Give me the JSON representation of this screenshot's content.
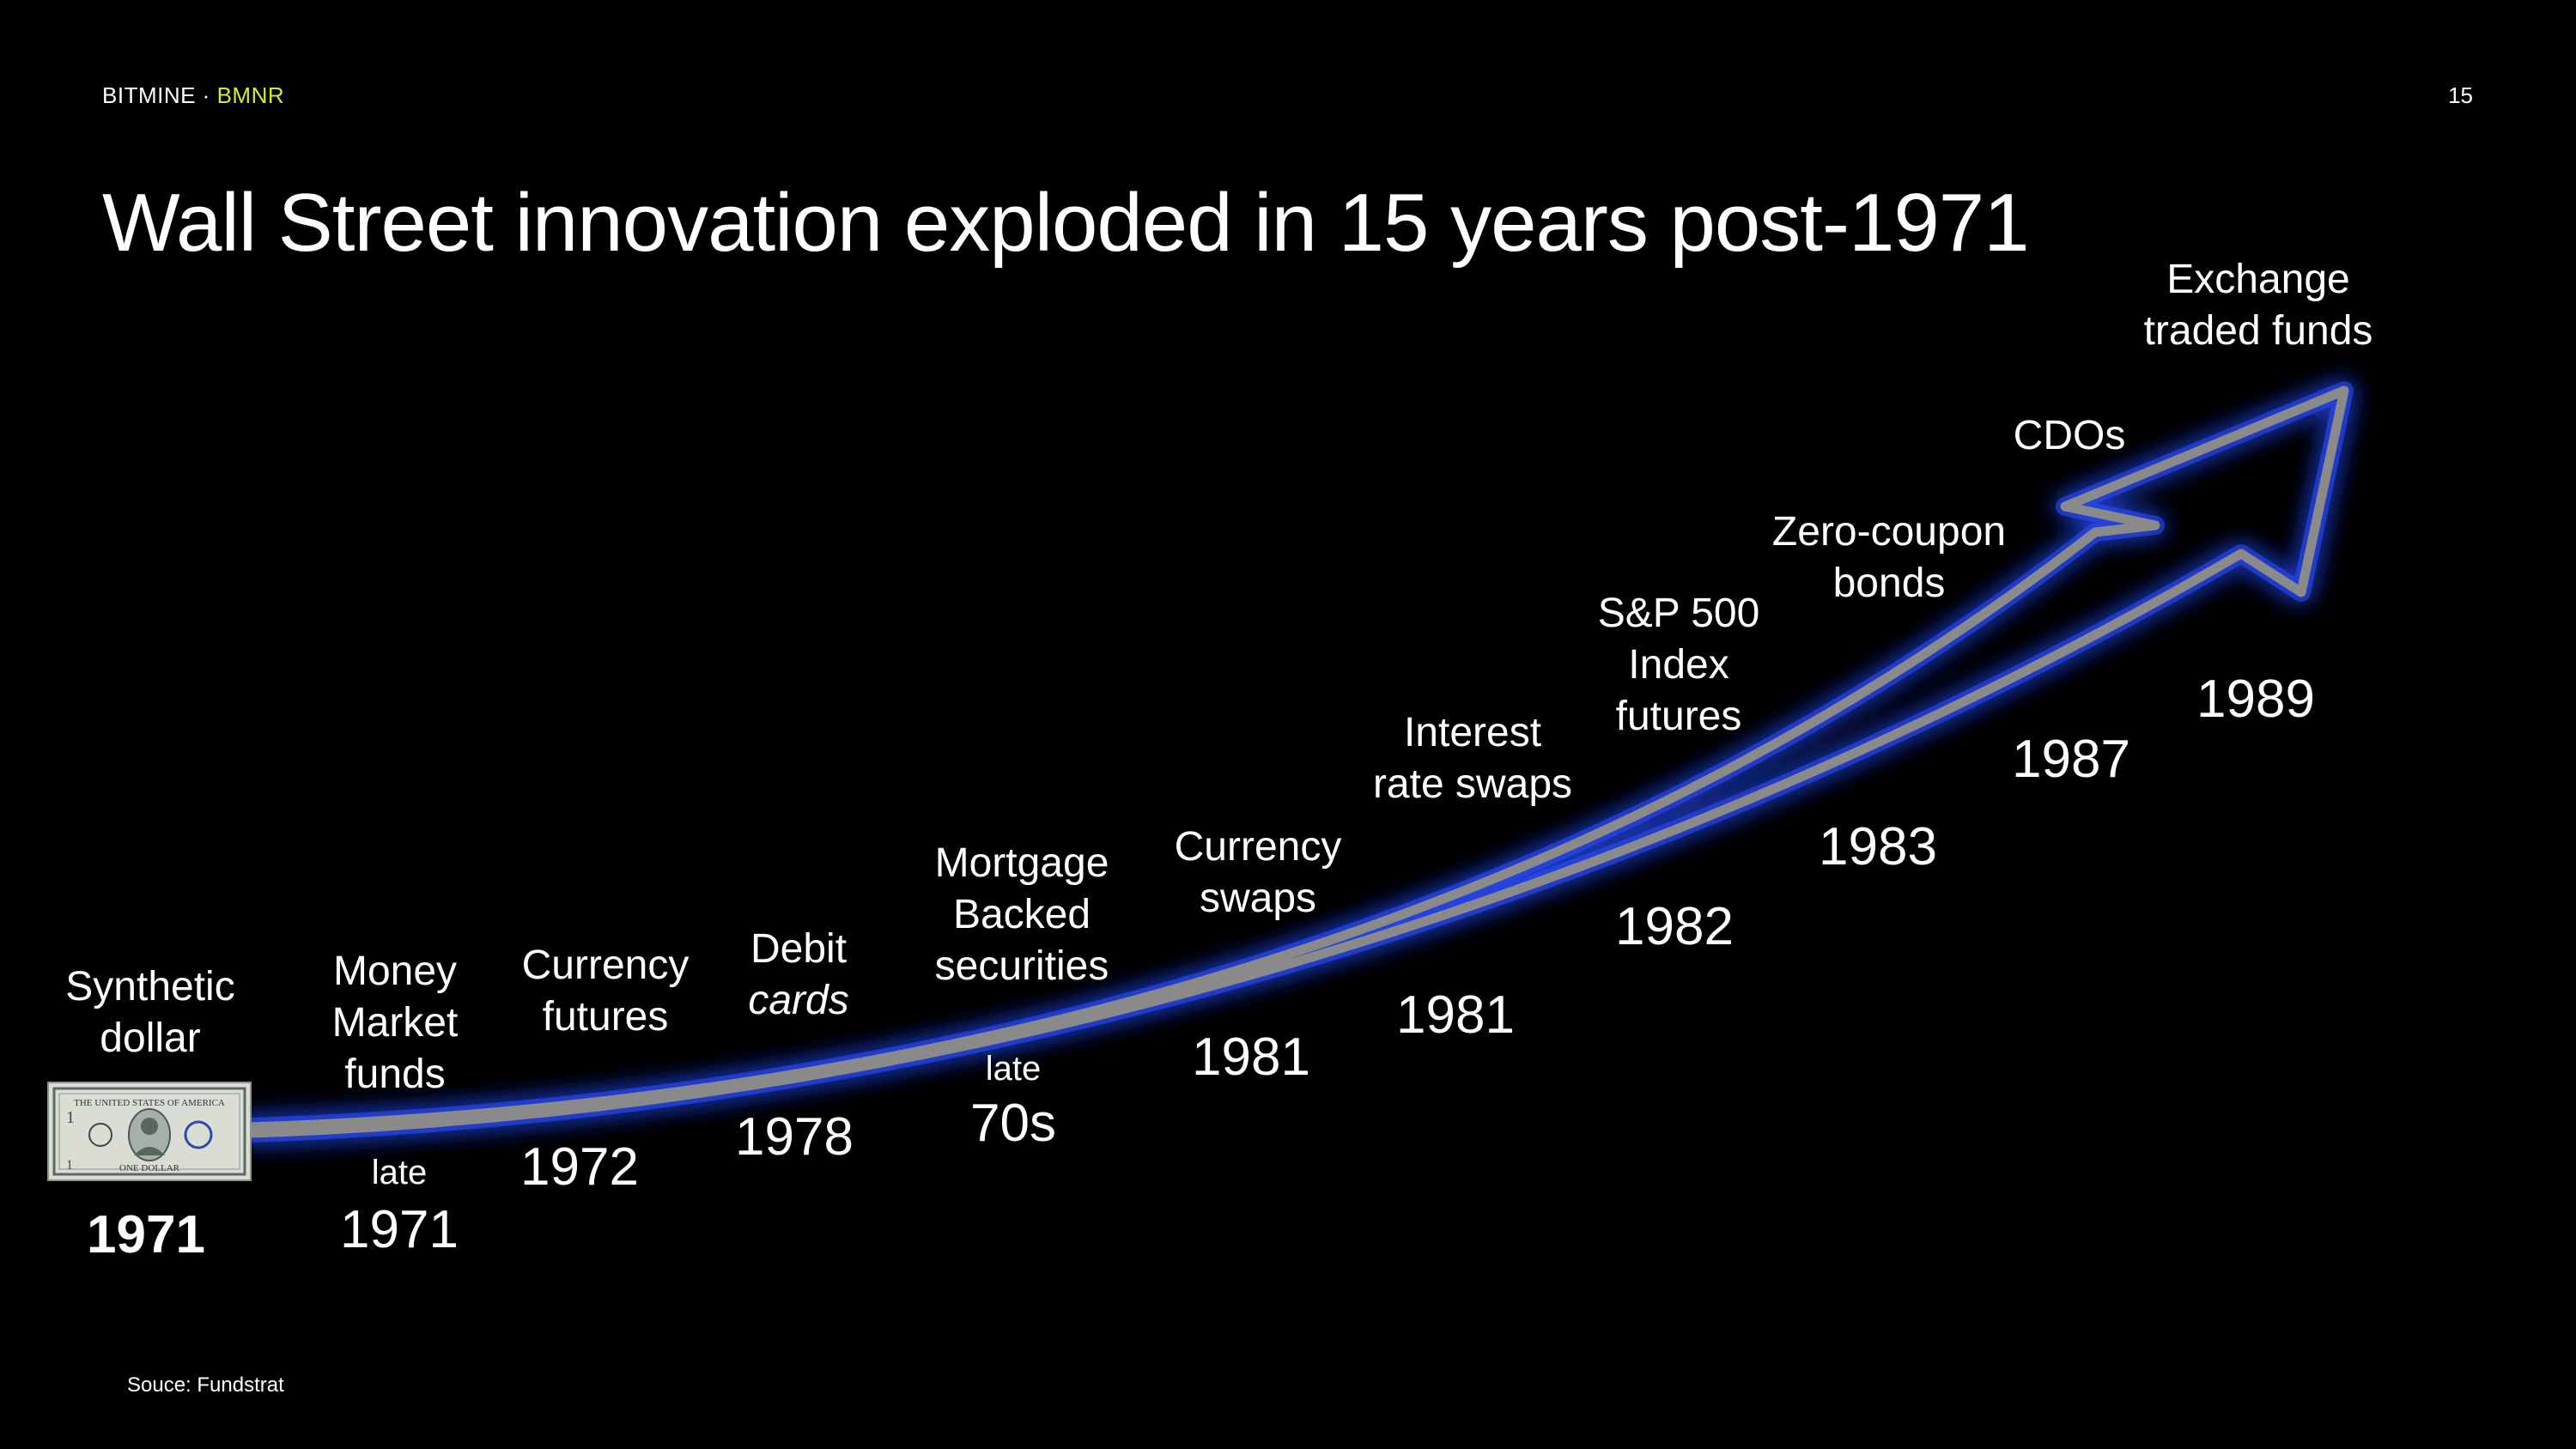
{
  "header": {
    "brand_name": "BITMINE",
    "separator": " · ",
    "ticker": "BMNR",
    "page_number": "15"
  },
  "title": "Wall Street innovation exploded in 15 years post-1971",
  "milestones": [
    {
      "label": [
        "Synthetic",
        "dollar"
      ],
      "year": "1971",
      "prefix": ""
    },
    {
      "label": [
        "Money",
        "Market",
        "funds"
      ],
      "year": "1971",
      "prefix": "late"
    },
    {
      "label": [
        "Currency",
        "futures"
      ],
      "year": "1972",
      "prefix": ""
    },
    {
      "label": [
        "Debit",
        "cards"
      ],
      "year": "1978",
      "prefix": ""
    },
    {
      "label": [
        "Mortgage",
        "Backed",
        "securities"
      ],
      "year": "70s",
      "prefix": "late"
    },
    {
      "label": [
        "Currency",
        "swaps"
      ],
      "year": "1981",
      "prefix": ""
    },
    {
      "label": [
        "Interest",
        "rate swaps"
      ],
      "year": "1981",
      "prefix": ""
    },
    {
      "label": [
        "S&P 500",
        "Index",
        "futures"
      ],
      "year": "1982",
      "prefix": ""
    },
    {
      "label": [
        "Zero-coupon",
        "bonds"
      ],
      "year": "1983",
      "prefix": ""
    },
    {
      "label": [
        "CDOs"
      ],
      "year": "1987",
      "prefix": ""
    },
    {
      "label": [
        "Exchange",
        "traded funds"
      ],
      "year": "1989",
      "prefix": ""
    }
  ],
  "bill": {
    "text": "THE UNITED STATES OF AMERICA",
    "denomination": "1",
    "footer": "ONE DOLLAR"
  },
  "source": "Souce: Fundstrat",
  "colors": {
    "accent": "#c8f031",
    "arrow": "#8a8a8a",
    "glow": "#2a4dff"
  }
}
